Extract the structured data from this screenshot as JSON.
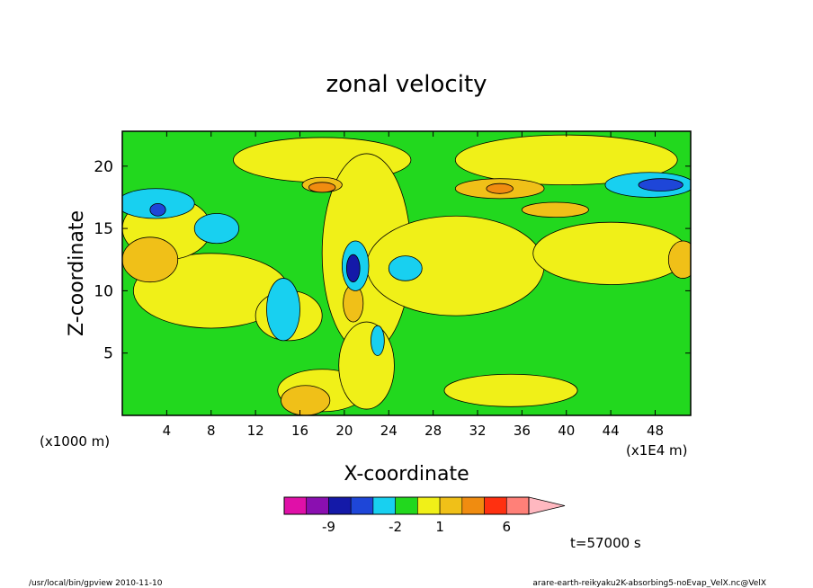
{
  "chart_data": {
    "type": "heatmap",
    "title": "zonal velocity",
    "xlabel": "X-coordinate",
    "ylabel": "Z-coordinate",
    "x_unit_left": "(x1000 m)",
    "x_unit_right": "(x1E4 m)",
    "xlim": [
      0,
      51.2
    ],
    "ylim": [
      0,
      22.8
    ],
    "x_ticks": [
      4,
      8,
      12,
      16,
      20,
      24,
      28,
      32,
      36,
      40,
      44,
      48
    ],
    "y_ticks": [
      5,
      10,
      15,
      20
    ],
    "colorbar": {
      "colors": [
        "#e010a8",
        "#8a0fb0",
        "#1419a8",
        "#1e46d8",
        "#18d0f0",
        "#22d81e",
        "#f0f018",
        "#f0c018",
        "#f08c10",
        "#ff3010",
        "#ff8078",
        "#ffb8c0"
      ],
      "labels": [
        {
          "text": "-9",
          "index": 1
        },
        {
          "text": "-2",
          "index": 4
        },
        {
          "text": "1",
          "index": 6
        },
        {
          "text": "6",
          "index": 9
        }
      ]
    },
    "field": {
      "background_level": "green",
      "regions": [
        {
          "level": "yellow",
          "cx": 18,
          "cy": 20.5,
          "rx": 8,
          "ry": 1.8
        },
        {
          "level": "yellow",
          "cx": 40,
          "cy": 20.5,
          "rx": 10,
          "ry": 2.0
        },
        {
          "level": "yellow",
          "cx": 22,
          "cy": 13,
          "rx": 4,
          "ry": 8
        },
        {
          "level": "yellow",
          "cx": 30,
          "cy": 12,
          "rx": 8,
          "ry": 4
        },
        {
          "level": "yellow",
          "cx": 44,
          "cy": 13,
          "rx": 7,
          "ry": 2.5
        },
        {
          "level": "yellow",
          "cx": 8,
          "cy": 10,
          "rx": 7,
          "ry": 3
        },
        {
          "level": "yellow",
          "cx": 4,
          "cy": 15,
          "rx": 4,
          "ry": 2.5
        },
        {
          "level": "yellow",
          "cx": 15,
          "cy": 8,
          "rx": 3,
          "ry": 2
        },
        {
          "level": "yellow",
          "cx": 18,
          "cy": 2,
          "rx": 4,
          "ry": 1.7
        },
        {
          "level": "yellow",
          "cx": 35,
          "cy": 2,
          "rx": 6,
          "ry": 1.3
        },
        {
          "level": "yellow",
          "cx": 22,
          "cy": 4,
          "rx": 2.5,
          "ry": 3.5
        },
        {
          "level": "light-orange",
          "cx": 18,
          "cy": 18.5,
          "rx": 1.8,
          "ry": 0.6
        },
        {
          "level": "light-orange",
          "cx": 34,
          "cy": 18.2,
          "rx": 4,
          "ry": 0.8
        },
        {
          "level": "light-orange",
          "cx": 39,
          "cy": 16.5,
          "rx": 3,
          "ry": 0.6
        },
        {
          "level": "light-orange",
          "cx": 2.5,
          "cy": 12.5,
          "rx": 2.5,
          "ry": 1.8
        },
        {
          "level": "light-orange",
          "cx": 50.5,
          "cy": 12.5,
          "rx": 1.3,
          "ry": 1.5
        },
        {
          "level": "light-orange",
          "cx": 20.8,
          "cy": 9,
          "rx": 0.9,
          "ry": 1.5
        },
        {
          "level": "light-orange",
          "cx": 16.5,
          "cy": 1.2,
          "rx": 2.2,
          "ry": 1.2
        },
        {
          "level": "orange",
          "cx": 18,
          "cy": 18.3,
          "rx": 1.2,
          "ry": 0.4
        },
        {
          "level": "orange",
          "cx": 34,
          "cy": 18.2,
          "rx": 1.2,
          "ry": 0.4
        },
        {
          "level": "cyan",
          "cx": 3,
          "cy": 17,
          "rx": 3.5,
          "ry": 1.2
        },
        {
          "level": "cyan",
          "cx": 8.5,
          "cy": 15,
          "rx": 2,
          "ry": 1.2
        },
        {
          "level": "cyan",
          "cx": 14.5,
          "cy": 8.5,
          "rx": 1.5,
          "ry": 2.5
        },
        {
          "level": "cyan",
          "cx": 21,
          "cy": 12,
          "rx": 1.2,
          "ry": 2
        },
        {
          "level": "cyan",
          "cx": 25.5,
          "cy": 11.8,
          "rx": 1.5,
          "ry": 1
        },
        {
          "level": "cyan",
          "cx": 47.5,
          "cy": 18.5,
          "rx": 4,
          "ry": 1
        },
        {
          "level": "cyan",
          "cx": 23,
          "cy": 6,
          "rx": 0.6,
          "ry": 1.2
        },
        {
          "level": "blue",
          "cx": 3.2,
          "cy": 16.5,
          "rx": 0.7,
          "ry": 0.5
        },
        {
          "level": "blue",
          "cx": 48.5,
          "cy": 18.5,
          "rx": 2,
          "ry": 0.5
        },
        {
          "level": "navy",
          "cx": 20.8,
          "cy": 11.8,
          "rx": 0.6,
          "ry": 1.1
        }
      ]
    }
  },
  "footer": {
    "left": "/usr/local/bin/gpview  2010-11-10",
    "right": "arare-earth-reikyaku2K-absorbing5-noEvap_VelX.nc@VelX",
    "time": "t=57000 s"
  }
}
